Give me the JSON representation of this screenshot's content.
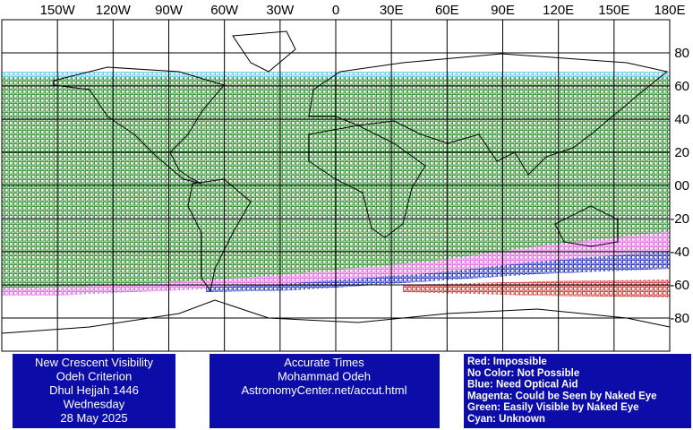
{
  "map": {
    "lon_labels": [
      "150W",
      "120W",
      "90W",
      "60W",
      "30W",
      "0",
      "30E",
      "60E",
      "90E",
      "120E",
      "150E",
      "180E"
    ],
    "lat_labels": [
      "80",
      "60",
      "40",
      "20",
      "00",
      "-20",
      "-40",
      "-60",
      "-80"
    ]
  },
  "info": {
    "lines": [
      "New Crescent Visibility",
      "Odeh Criterion",
      "Dhul Hejjah 1446",
      "Wednesday",
      "28 May 2025"
    ]
  },
  "credits": {
    "lines": [
      "Accurate Times",
      "Mohammad Odeh",
      "AstronomyCenter.net/accut.html"
    ]
  },
  "legend": {
    "lines": [
      "Red: Impossible",
      "No Color: Not Possible",
      "Blue: Need Optical Aid",
      "Magenta: Could be Seen by Naked Eye",
      "Green: Easily Visible by Naked Eye",
      "Cyan: Unknown"
    ]
  }
}
